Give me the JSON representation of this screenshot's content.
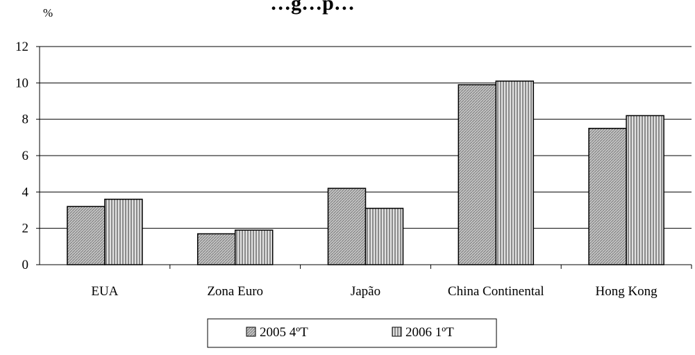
{
  "chart_data": {
    "type": "bar",
    "title": "…g…p…",
    "ylabel": "%",
    "xlabel": "",
    "ylim": [
      0,
      12
    ],
    "yticks": [
      0,
      2,
      4,
      6,
      8,
      10,
      12
    ],
    "grid": true,
    "legend_position": "bottom",
    "categories": [
      "EUA",
      "Zona Euro",
      "Japão",
      "China Continental",
      "Hong Kong"
    ],
    "series": [
      {
        "name": "2005 4ºT",
        "values": [
          3.2,
          1.7,
          4.2,
          9.9,
          7.5
        ],
        "pattern": "diagonal-hatch",
        "color": "#bdbdbd"
      },
      {
        "name": "2006 1ºT",
        "values": [
          3.6,
          1.9,
          3.1,
          10.1,
          8.2
        ],
        "pattern": "vertical-stripes",
        "color": "#cfcfcf"
      }
    ]
  }
}
